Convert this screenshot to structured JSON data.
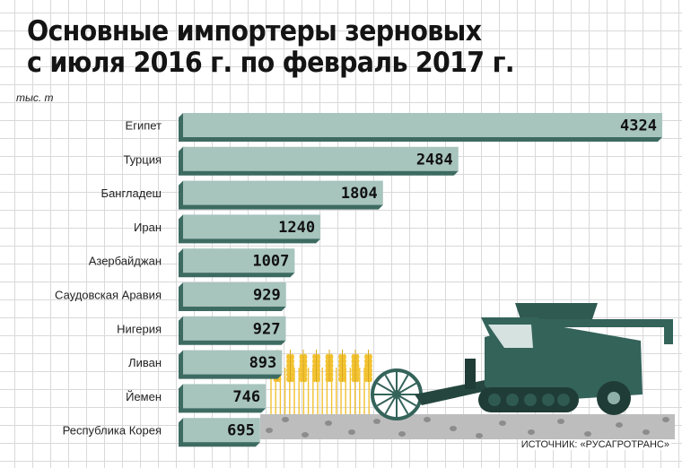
{
  "title_lines": [
    "Основные импортеры зерновых",
    "с июля 2016 г. по февраль 2017 г."
  ],
  "unit": "тыс. т",
  "source": "ИСТОЧНИК: «РУСАГРОТРАНС»",
  "colors": {
    "bar_face": "#a7c4bd",
    "bar_shadow": "#3d6b62",
    "value_text": "#111111",
    "category_text": "#222222",
    "combine": "#34635a",
    "wheat": "#f2c230",
    "ground": "#bdbdbd"
  },
  "chart_data": {
    "type": "bar",
    "orientation": "horizontal",
    "categories": [
      "Египет",
      "Турция",
      "Бангладеш",
      "Иран",
      "Азербайджан",
      "Саудовская Аравия",
      "Нигерия",
      "Ливан",
      "Йемен",
      "Республика Корея"
    ],
    "values": [
      4324,
      2484,
      1804,
      1240,
      1007,
      929,
      927,
      893,
      746,
      695
    ],
    "title": "Основные импортеры зерновых с июля 2016 г. по февраль 2017 г.",
    "unit": "тыс. т",
    "xlim": [
      0,
      4324
    ]
  }
}
